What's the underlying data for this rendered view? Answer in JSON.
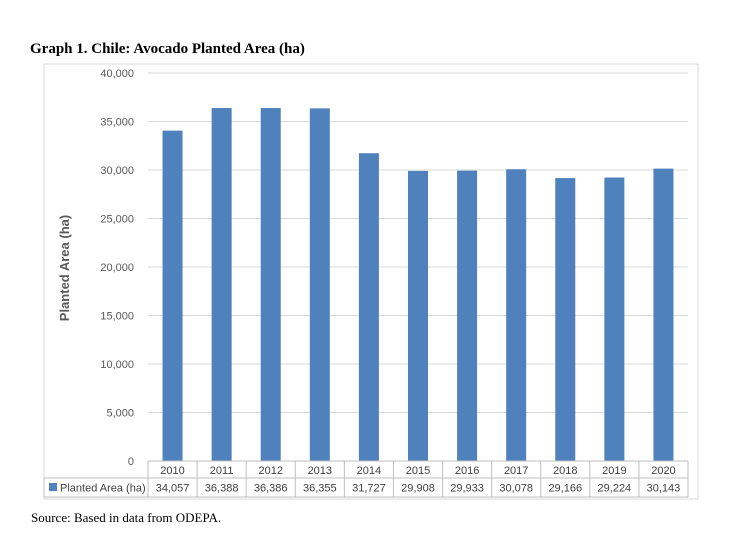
{
  "title": "Graph 1.  Chile: Avocado Planted Area (ha)",
  "source": "Source: Based in data from ODEPA.",
  "chart_data": {
    "type": "bar",
    "title": "Graph 1.  Chile: Avocado Planted Area (ha)",
    "xlabel": "",
    "ylabel": "Planted Area (ha)",
    "ylim": [
      0,
      40000
    ],
    "yticks": [
      "0",
      "5,000",
      "10,000",
      "15,000",
      "20,000",
      "25,000",
      "30,000",
      "35,000",
      "40,000"
    ],
    "grid": true,
    "legend": "data table, left",
    "categories": [
      "2010",
      "2011",
      "2012",
      "2013",
      "2014",
      "2015",
      "2016",
      "2017",
      "2018",
      "2019",
      "2020"
    ],
    "series": [
      {
        "name": "Planted Area (ha)",
        "color": "#4f81bd",
        "values": [
          34057,
          36388,
          36386,
          36355,
          31727,
          29908,
          29933,
          30078,
          29166,
          29224,
          30143
        ],
        "labels": [
          "34,057",
          "36,388",
          "36,386",
          "36,355",
          "31,727",
          "29,908",
          "29,933",
          "30,078",
          "29,166",
          "29,224",
          "30,143"
        ]
      }
    ]
  }
}
